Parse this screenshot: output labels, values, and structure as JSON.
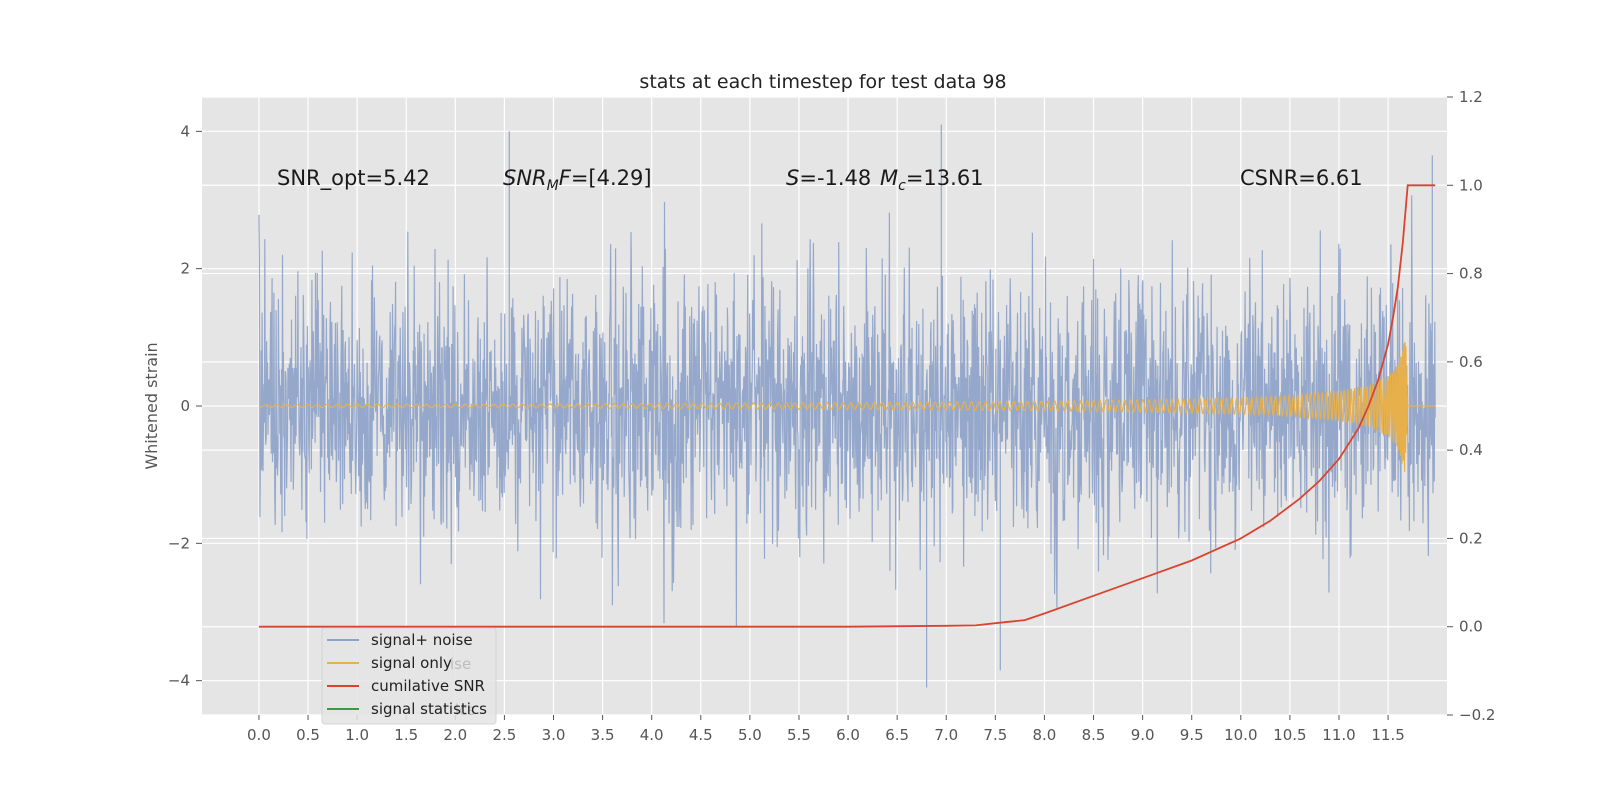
{
  "chart_data": {
    "type": "line",
    "title": "stats at each timestep for test data 98",
    "xlabel": "",
    "ylabel": "Whitened strain",
    "xlim": [
      -0.58,
      12.1
    ],
    "ylim": [
      -4.5,
      4.5
    ],
    "ylim_right": [
      -0.2,
      1.2
    ],
    "x_ticks": [
      0.0,
      0.5,
      1.0,
      1.5,
      2.0,
      2.5,
      3.0,
      3.5,
      4.0,
      4.5,
      5.0,
      5.5,
      6.0,
      6.5,
      7.0,
      7.5,
      8.0,
      8.5,
      9.0,
      9.5,
      10.0,
      10.5,
      11.0,
      11.5
    ],
    "x_tick_labels": [
      "0.0",
      "0.5",
      "1.0",
      "1.5",
      "2.0",
      "2.5",
      "3.0",
      "3.5",
      "4.0",
      "4.5",
      "5.0",
      "5.5",
      "6.0",
      "6.5",
      "7.0",
      "7.5",
      "8.0",
      "8.5",
      "9.0",
      "9.5",
      "10.0",
      "10.5",
      "11.0",
      "11.5"
    ],
    "y_ticks": [
      -4,
      -2,
      0,
      2,
      4
    ],
    "y_tick_labels": [
      "−4",
      "−2",
      "0",
      "2",
      "4"
    ],
    "y_right_ticks": [
      -0.2,
      0.0,
      0.2,
      0.4,
      0.6,
      0.8,
      1.0,
      1.2
    ],
    "y_right_tick_labels": [
      "−0.2",
      "0.0",
      "0.2",
      "0.4",
      "0.6",
      "0.8",
      "1.0",
      "1.2"
    ],
    "grid": true,
    "legend_position": "lower-left",
    "series": [
      {
        "name": "signal+ noise",
        "color": "#8ea3c9",
        "axis": "left",
        "description_values": {
          "x_range": [
            0.0,
            11.98
          ],
          "typical_amplitude": 2.0,
          "peaks": [
            {
              "x": 2.55,
              "y": 4.0
            },
            {
              "x": 6.95,
              "y": 4.1
            },
            {
              "x": 6.8,
              "y": -4.1
            },
            {
              "x": 7.55,
              "y": -3.85
            },
            {
              "x": 11.95,
              "y": 3.65
            }
          ]
        }
      },
      {
        "name": "signal only",
        "color": "#e8b04a",
        "axis": "left",
        "envelope": {
          "x": [
            0.0,
            3.0,
            6.0,
            8.0,
            9.0,
            10.0,
            10.5,
            11.0,
            11.3,
            11.5,
            11.6,
            11.65,
            11.68,
            11.7
          ],
          "amp": [
            0.02,
            0.03,
            0.05,
            0.07,
            0.09,
            0.12,
            0.15,
            0.22,
            0.3,
            0.45,
            0.6,
            0.9,
            1.05,
            0.0
          ]
        }
      },
      {
        "name": "cumilative SNR",
        "color": "#d9432f",
        "axis": "right",
        "x": [
          0.0,
          2.0,
          4.0,
          6.0,
          7.0,
          7.3,
          7.5,
          7.8,
          8.0,
          8.5,
          9.0,
          9.5,
          10.0,
          10.3,
          10.6,
          10.8,
          11.0,
          11.2,
          11.3,
          11.4,
          11.5,
          11.55,
          11.6,
          11.65,
          11.68,
          11.7,
          11.98
        ],
        "y": [
          0.0,
          0.0,
          0.0,
          0.0,
          0.002,
          0.003,
          0.008,
          0.015,
          0.03,
          0.07,
          0.11,
          0.15,
          0.2,
          0.24,
          0.29,
          0.33,
          0.38,
          0.45,
          0.5,
          0.56,
          0.64,
          0.7,
          0.77,
          0.87,
          0.95,
          1.0,
          1.0
        ]
      },
      {
        "name": "signal statistics",
        "color": "#3a9a44",
        "axis": "left",
        "x": [],
        "y": []
      }
    ],
    "annotations": [
      {
        "id": "snr-opt",
        "text": "SNR_opt=5.42"
      },
      {
        "id": "snr-mf",
        "prefix": "SNR",
        "sub": "M",
        "suffix": "F=[4.29]"
      },
      {
        "id": "s-stat",
        "prefix": "S",
        "suffix": "=-1.48"
      },
      {
        "id": "mc",
        "prefix": "M",
        "sub": "c",
        "suffix": "=13.61"
      },
      {
        "id": "csnr",
        "text": "CSNR=6.61"
      }
    ],
    "legend_ghost_texts": [
      "ise",
      "ics"
    ]
  }
}
